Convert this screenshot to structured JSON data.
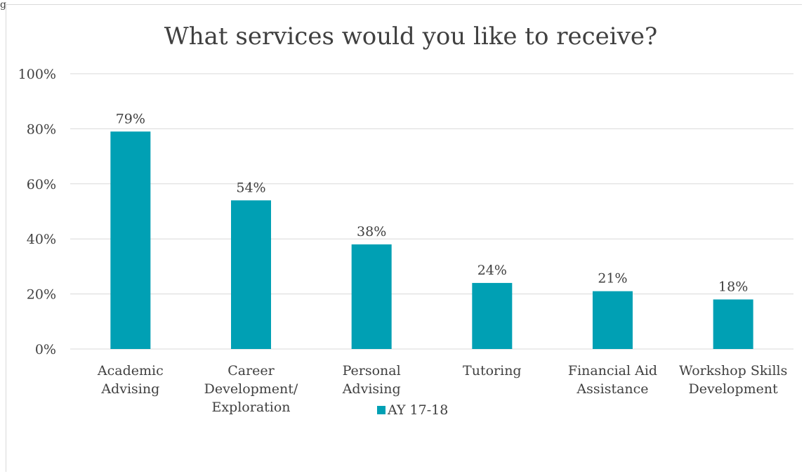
{
  "corner_mark": "g",
  "chart_data": {
    "type": "bar",
    "title": "What services would you like to receive?",
    "xlabel": "",
    "ylabel": "",
    "ylim": [
      0,
      100
    ],
    "yticks": [
      0,
      20,
      40,
      60,
      80,
      100
    ],
    "ytick_labels": [
      "0%",
      "20%",
      "40%",
      "60%",
      "80%",
      "100%"
    ],
    "categories": [
      [
        "Academic",
        "Advising"
      ],
      [
        "Career",
        "Development/",
        "Exploration"
      ],
      [
        "Personal",
        "Advising"
      ],
      [
        "Tutoring"
      ],
      [
        "Financial Aid",
        "Assistance"
      ],
      [
        "Workshop Skills",
        "Development"
      ]
    ],
    "series": [
      {
        "name": "AY 17-18",
        "values": [
          79,
          54,
          38,
          24,
          21,
          18
        ],
        "data_labels": [
          "79%",
          "54%",
          "38%",
          "24%",
          "21%",
          "18%"
        ],
        "color": "#00a0b4"
      }
    ],
    "grid": true,
    "legend_position": "bottom",
    "gridline_color": "#d9d9d9"
  }
}
